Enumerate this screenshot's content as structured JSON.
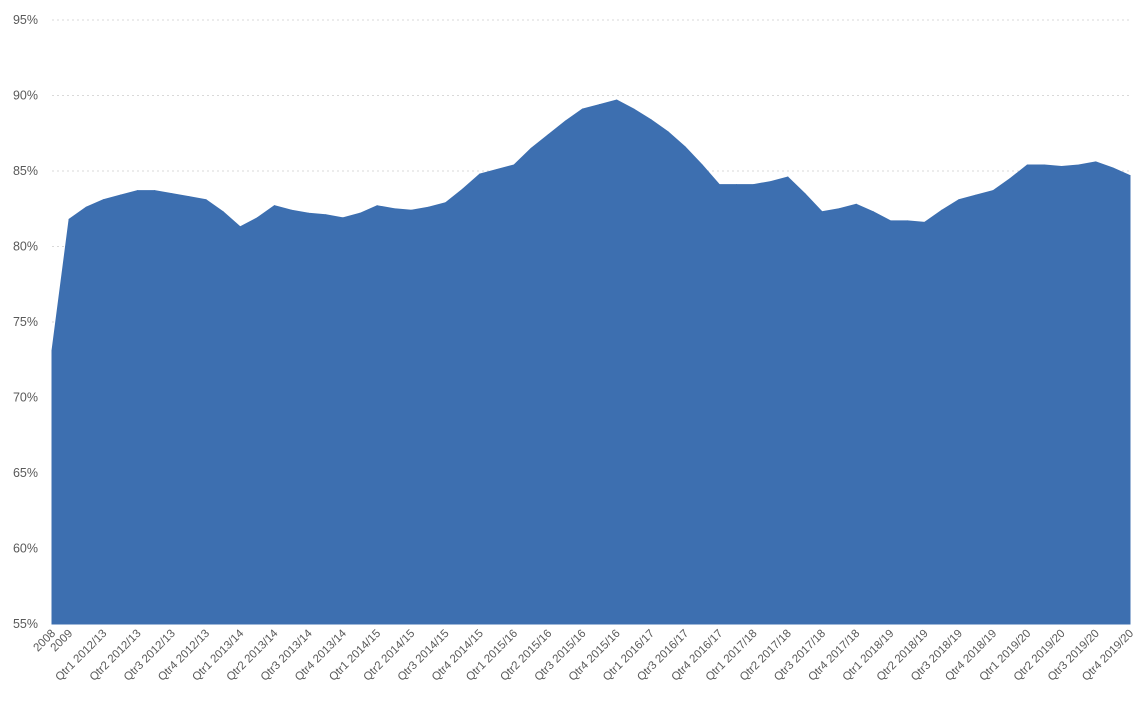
{
  "chart_data": {
    "type": "area",
    "title": "",
    "xlabel": "",
    "ylabel": "",
    "ylim": [
      0.55,
      0.95
    ],
    "y_ticks": [
      "95%",
      "90%",
      "85%",
      "80%",
      "75%",
      "70%",
      "65%",
      "60%",
      "55%"
    ],
    "grid": true,
    "legend": "none",
    "color": "#3d6fb0",
    "categories": [
      "2008",
      "2009",
      "Qtr1 2012/13",
      "Qtr2 2012/13",
      "Qtr3 2012/13",
      "Qtr4 2012/13",
      "Qtr1 2013/14",
      "Qtr2 2013/14",
      "Qtr3 2013/14",
      "Qtr4 2013/14",
      "Qtr1 2014/15",
      "Qtr2 2014/15",
      "Qtr3 2014/15",
      "Qtr4 2014/15",
      "Qtr1 2015/16",
      "Qtr2 2015/16",
      "Qtr3 2015/16",
      "Qtr4 2015/16",
      "Qtr1 2016/17",
      "Qtr3 2016/17",
      "Qtr4 2016/17",
      "Qtr1 2017/18",
      "Qtr2 2017/18",
      "Qtr3 2017/18",
      "Qtr4 2017/18",
      "Qtr1 2018/19",
      "Qtr2 2018/19",
      "Qtr3 2018/19",
      "Qtr4 2018/19",
      "Qtr1 2019/20",
      "Qtr2 2019/20",
      "Qtr3 2019/20",
      "Qtr4 2019/20"
    ],
    "x": [
      "2008",
      "2009",
      "",
      "Qtr1 2012/13",
      "",
      "Qtr2 2012/13",
      "",
      "Qtr3 2012/13",
      "",
      "Qtr4 2012/13",
      "",
      "Qtr1 2013/14",
      "",
      "Qtr2 2013/14",
      "",
      "Qtr3 2013/14",
      "",
      "Qtr4 2013/14",
      "",
      "Qtr1 2014/15",
      "",
      "Qtr2 2014/15",
      "",
      "Qtr3 2014/15",
      "",
      "Qtr4 2014/15",
      "",
      "Qtr1 2015/16",
      "",
      "Qtr2 2015/16",
      "",
      "Qtr3 2015/16",
      "",
      "Qtr4 2015/16",
      "",
      "Qtr1 2016/17",
      "",
      "Qtr3 2016/17",
      "",
      "Qtr4 2016/17",
      "",
      "Qtr1 2017/18",
      "",
      "Qtr2 2017/18",
      "",
      "Qtr3 2017/18",
      "",
      "Qtr4 2017/18",
      "",
      "Qtr1 2018/19",
      "",
      "Qtr2 2018/19",
      "",
      "Qtr3 2018/19",
      "",
      "Qtr4 2018/19",
      "",
      "Qtr1 2019/20",
      "",
      "Qtr2 2019/20",
      "",
      "Qtr3 2019/20",
      "",
      "Qtr4 2019/20"
    ],
    "series": [
      {
        "values": [
          0.731,
          0.818,
          0.826,
          0.831,
          0.834,
          0.837,
          0.837,
          0.835,
          0.833,
          0.831,
          0.823,
          0.813,
          0.819,
          0.827,
          0.824,
          0.822,
          0.821,
          0.819,
          0.822,
          0.827,
          0.825,
          0.824,
          0.826,
          0.829,
          0.838,
          0.848,
          0.851,
          0.854,
          0.865,
          0.874,
          0.883,
          0.891,
          0.894,
          0.897,
          0.891,
          0.884,
          0.876,
          0.866,
          0.854,
          0.841,
          0.841,
          0.841,
          0.843,
          0.846,
          0.835,
          0.823,
          0.825,
          0.828,
          0.823,
          0.817,
          0.817,
          0.816,
          0.824,
          0.831,
          0.834,
          0.837,
          0.845,
          0.854,
          0.854,
          0.853,
          0.854,
          0.856,
          0.852,
          0.847
        ]
      }
    ]
  }
}
